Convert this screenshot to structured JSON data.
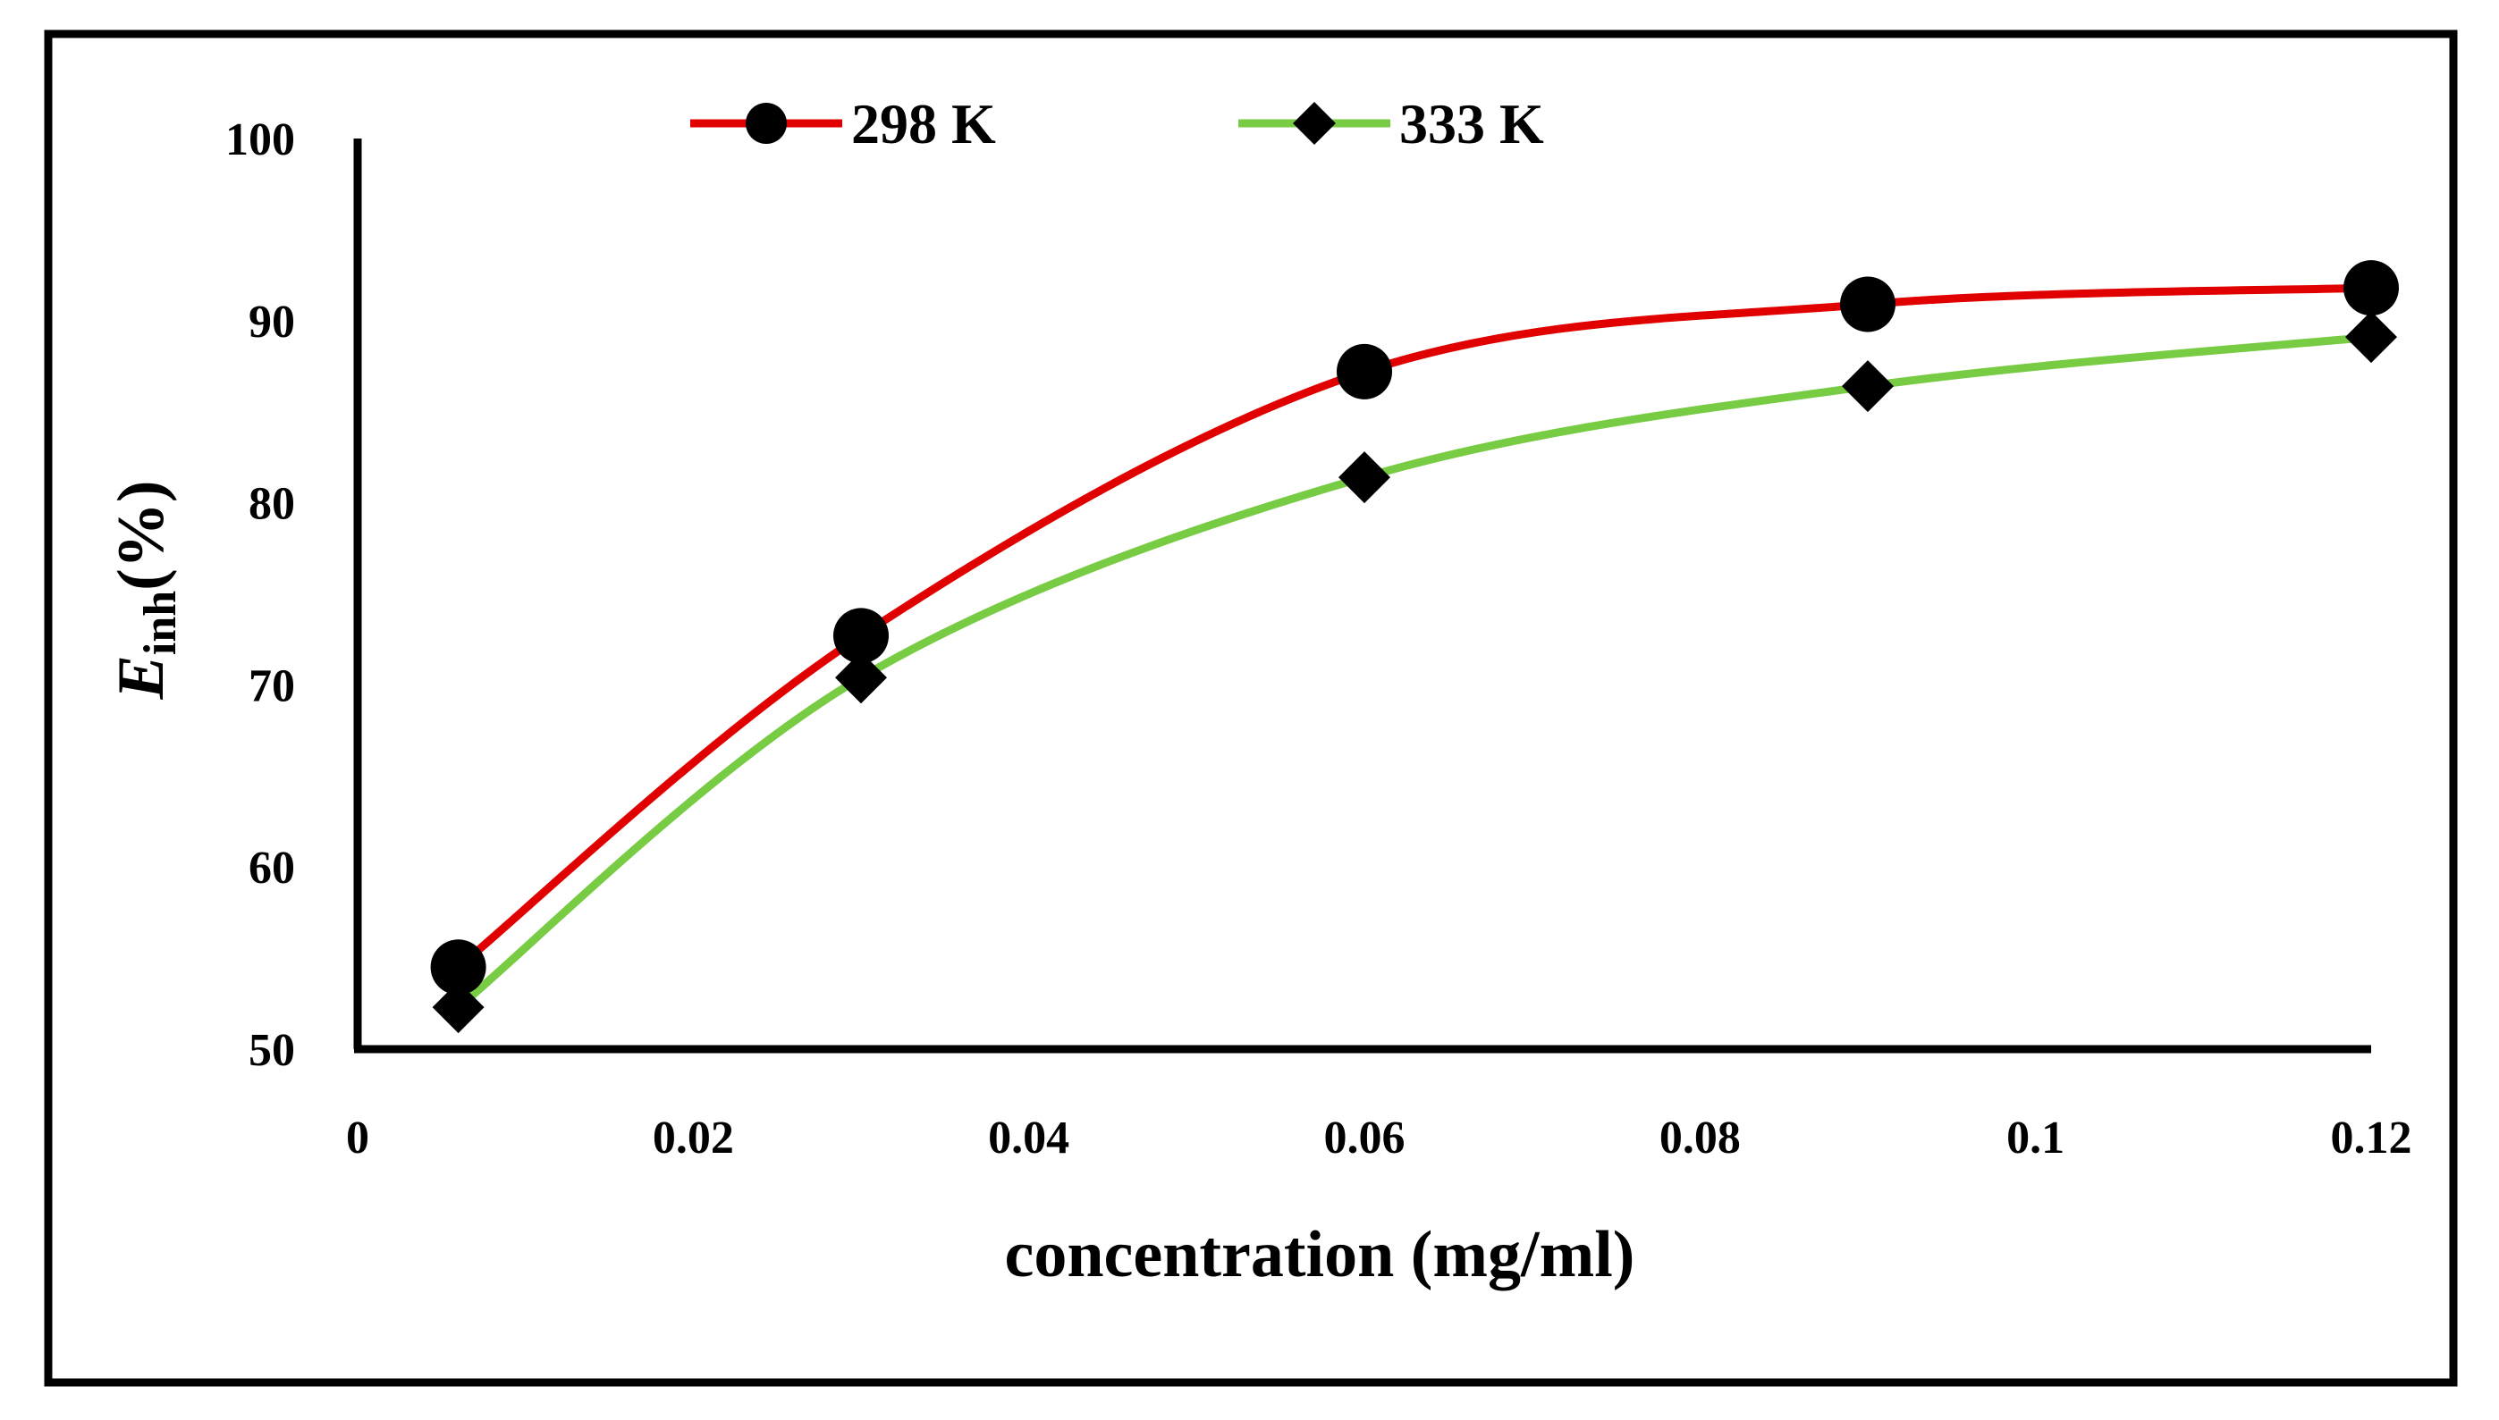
{
  "chart_data": {
    "type": "line",
    "title": "",
    "xlabel": "concentration (mg/ml)",
    "ylabel": {
      "main": "E",
      "subscript": "inh",
      "suffix": "(%)"
    },
    "xlim": [
      0,
      0.12
    ],
    "ylim": [
      50,
      100
    ],
    "xticks": [
      "0",
      "0.02",
      "0.04",
      "0.06",
      "0.08",
      "0.1",
      "0.12"
    ],
    "yticks": [
      "50",
      "60",
      "70",
      "80",
      "90",
      "100"
    ],
    "grid": false,
    "legend": "top-center",
    "x": [
      0.006,
      0.03,
      0.06,
      0.09,
      0.12
    ],
    "series": [
      {
        "name": "298 K",
        "color": "#e00000",
        "marker": "circle",
        "values": [
          54.5,
          72.7,
          87.2,
          90.9,
          91.8
        ]
      },
      {
        "name": "333 K",
        "color": "#77cc44",
        "marker": "diamond",
        "values": [
          52.3,
          70.4,
          81.4,
          86.4,
          89.1
        ]
      }
    ]
  }
}
